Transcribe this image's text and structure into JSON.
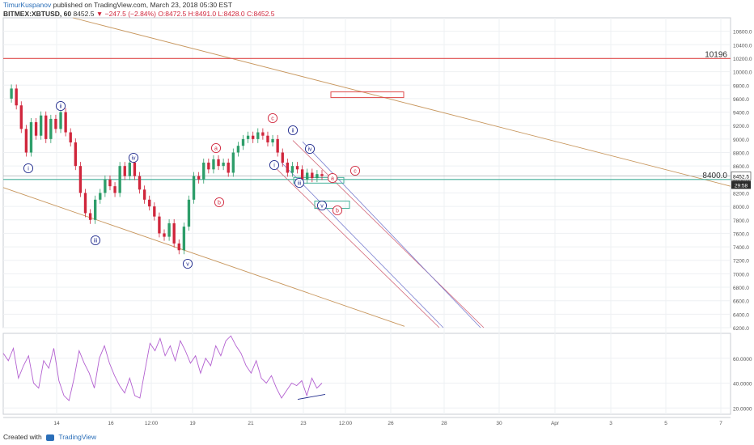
{
  "header": {
    "author": "TimurKuspanov",
    "published": "published on TradingView.com, March 23, 2018 05:30 EST",
    "symbol": "BITMEX:XBTUSD, 60",
    "last": "8452.5",
    "change": "▼ −247.5 (−2.84%)",
    "ohlc": "O:8472.5 H:8491.0 L:8428.0 C:8452.5"
  },
  "footer": {
    "created_with": "Created with",
    "brand": "TradingView"
  },
  "colors": {
    "up": "#2e9e6a",
    "down": "#d0263c",
    "channel": "#c8975e",
    "resistance": "#e04b4b",
    "support": "#44b09a",
    "wave_blue": "#1f2a8c",
    "wave_red": "#d0263c",
    "rsi": "#b360d0",
    "grid": "#eef0f3"
  },
  "chart_data": [
    {
      "type": "candlestick",
      "title": "",
      "series": "BITMEX:XBTUSD 60",
      "y_ticks": [
        10600,
        10400,
        10200,
        10000,
        9800,
        9600,
        9400,
        9200,
        9000,
        8800,
        8600,
        8400,
        8200,
        8000,
        7800,
        7600,
        7400,
        7200,
        7000,
        6800,
        6600,
        6400,
        6200
      ],
      "ylim": [
        6200,
        10800
      ],
      "x_ticks": [
        "14",
        "16",
        "12:00",
        "19",
        "21",
        "23",
        "12:00",
        "26",
        "28",
        "30",
        "Apr",
        "3",
        "5",
        "7"
      ],
      "close_path": [
        9600,
        9750,
        9500,
        9150,
        8800,
        9250,
        9050,
        9350,
        9000,
        9300,
        9150,
        9400,
        9100,
        8950,
        8600,
        8200,
        7900,
        7800,
        8100,
        8200,
        8400,
        8300,
        8200,
        8600,
        8450,
        8650,
        8450,
        8250,
        8100,
        8000,
        7850,
        7600,
        7550,
        7750,
        7450,
        7350,
        7700,
        8100,
        8450,
        8400,
        8650,
        8550,
        8700,
        8600,
        8650,
        8500,
        8800,
        8900,
        9000,
        9050,
        9000,
        9100,
        9050,
        8950,
        9000,
        8800,
        8650,
        8500,
        8600,
        8550,
        8400,
        8500,
        8420,
        8480,
        8452.5
      ],
      "price_labels": [
        {
          "text": "10196",
          "value": 10196
        },
        {
          "text": "8400.0",
          "value": 8400
        },
        {
          "text": "8452.5",
          "value": 8452.5
        },
        {
          "text": "29:58",
          "value": 8350
        }
      ],
      "horizontal_lines": [
        {
          "name": "resistance",
          "value": 10196
        },
        {
          "name": "support",
          "value": 8400
        }
      ],
      "wave_labels": [
        {
          "text": "i",
          "color": "blue"
        },
        {
          "text": "ii",
          "color": "blue"
        },
        {
          "text": "iii",
          "color": "blue"
        },
        {
          "text": "iv",
          "color": "blue"
        },
        {
          "text": "v",
          "color": "blue"
        },
        {
          "text": "a",
          "color": "red"
        },
        {
          "text": "b",
          "color": "red"
        },
        {
          "text": "c",
          "color": "red"
        },
        {
          "text": "i",
          "color": "blue"
        },
        {
          "text": "ii",
          "color": "blue"
        },
        {
          "text": "iii",
          "color": "blue"
        },
        {
          "text": "iv",
          "color": "blue"
        },
        {
          "text": "v",
          "color": "blue"
        },
        {
          "text": "a",
          "color": "red"
        },
        {
          "text": "b",
          "color": "red"
        },
        {
          "text": "c",
          "color": "red"
        }
      ]
    },
    {
      "type": "line",
      "title": "",
      "series": "RSI",
      "y_ticks": [
        60.0,
        40.0,
        20.0
      ],
      "ylim": [
        15,
        80
      ],
      "values": [
        64,
        58,
        68,
        44,
        54,
        62,
        40,
        36,
        58,
        52,
        68,
        42,
        30,
        26,
        44,
        66,
        56,
        48,
        36,
        60,
        70,
        56,
        46,
        38,
        32,
        44,
        30,
        28,
        50,
        72,
        66,
        76,
        62,
        70,
        58,
        74,
        66,
        56,
        62,
        48,
        60,
        54,
        70,
        62,
        74,
        78,
        70,
        64,
        54,
        48,
        58,
        44,
        40,
        46,
        36,
        28,
        34,
        40,
        38,
        42,
        30,
        44,
        36,
        40
      ]
    }
  ]
}
